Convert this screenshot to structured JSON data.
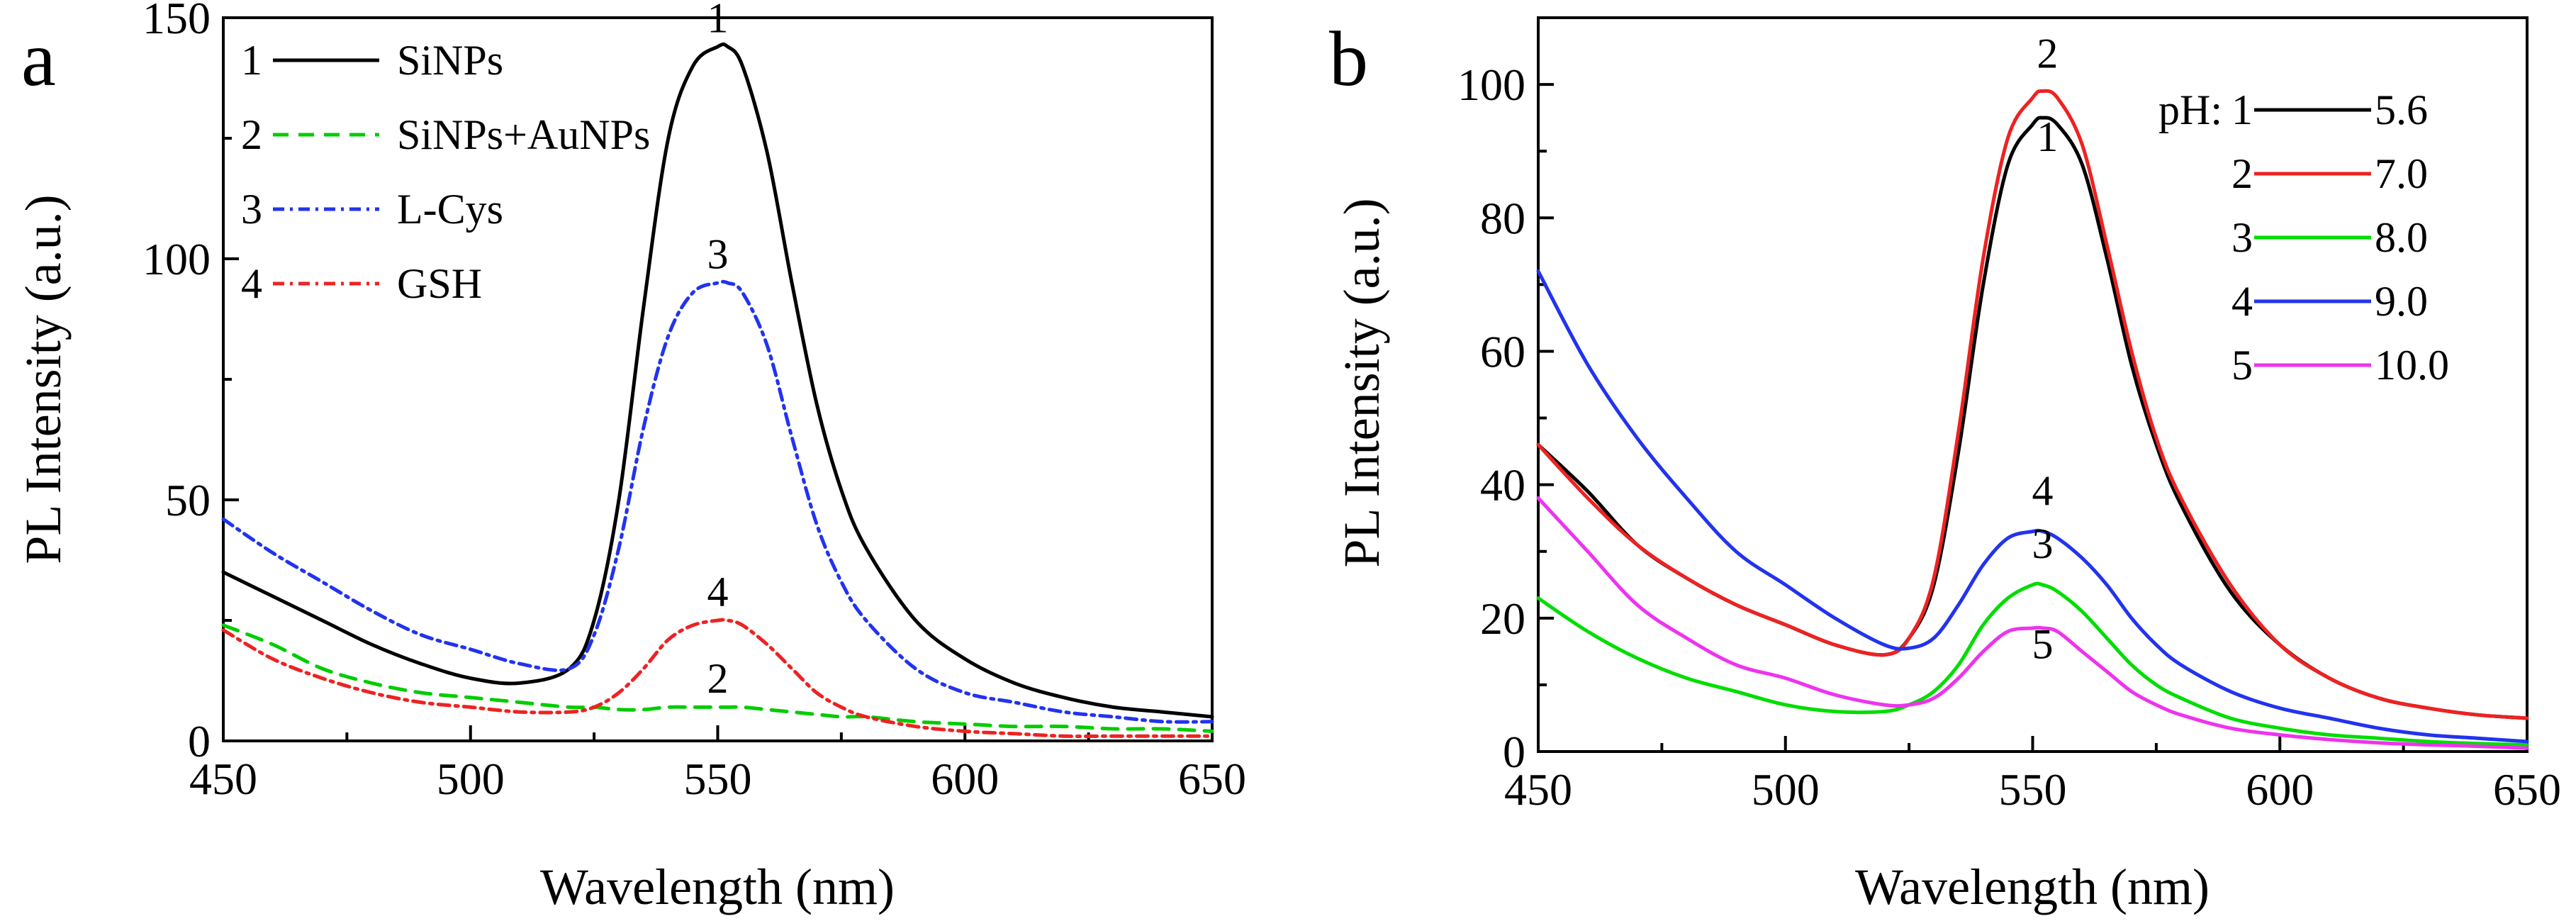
{
  "chart_data": [
    {
      "type": "line",
      "panel_label": "a",
      "xlabel": "Wavelength (nm)",
      "ylabel": "PL Intensity (a.u.)",
      "xlim": [
        450,
        650
      ],
      "ylim": [
        0,
        150
      ],
      "xticks": [
        450,
        500,
        550,
        600,
        650
      ],
      "yticks": [
        0,
        50,
        100,
        150
      ],
      "x": [
        450,
        460,
        470,
        480,
        490,
        500,
        510,
        520,
        525,
        530,
        535,
        540,
        545,
        550,
        552,
        555,
        560,
        565,
        570,
        575,
        580,
        590,
        600,
        610,
        620,
        630,
        640,
        650
      ],
      "series": [
        {
          "id": "1",
          "name": "SiNPs",
          "color": "#000000",
          "dash": "none",
          "values": [
            35,
            30,
            25,
            20,
            16,
            13,
            12,
            15,
            25,
            50,
            90,
            125,
            140,
            144,
            144,
            140,
            122,
            95,
            70,
            52,
            40,
            25,
            17,
            12,
            9,
            7,
            6,
            5
          ]
        },
        {
          "id": "2",
          "name": "SiNPs+AuNPs",
          "color": "#00cc00",
          "dash": "22,14",
          "values": [
            24,
            20,
            15,
            12,
            10,
            9,
            8,
            7,
            7,
            6.5,
            6.5,
            7,
            7,
            7,
            7,
            7,
            6.5,
            6,
            5.5,
            5,
            5,
            4,
            3.5,
            3,
            3,
            2.5,
            2.5,
            2
          ]
        },
        {
          "id": "3",
          "name": "L-Cys",
          "color": "#2233ee",
          "dash": "16,8,4,8",
          "values": [
            46,
            39,
            33,
            27,
            22,
            19,
            16,
            15,
            22,
            40,
            65,
            84,
            93,
            95,
            95,
            93,
            82,
            63,
            45,
            33,
            25,
            15,
            10,
            8,
            6,
            5,
            4,
            4
          ]
        },
        {
          "id": "4",
          "name": "GSH",
          "color": "#ee2222",
          "dash": "16,8,4,8",
          "values": [
            23,
            17,
            13,
            10,
            8,
            7,
            6,
            6,
            7,
            10,
            15,
            21,
            24,
            25,
            25,
            24,
            20,
            15,
            10,
            7,
            5,
            3,
            2,
            1.5,
            1,
            1,
            1,
            1
          ]
        }
      ],
      "legend": [
        "1",
        "2",
        "3",
        "4"
      ],
      "peak_labels": [
        {
          "text": "1",
          "x": 550,
          "y": 147
        },
        {
          "text": "3",
          "x": 550,
          "y": 98
        },
        {
          "text": "4",
          "x": 550,
          "y": 28
        },
        {
          "text": "2",
          "x": 550,
          "y": 10
        }
      ]
    },
    {
      "type": "line",
      "panel_label": "b",
      "xlabel": "Wavelength (nm)",
      "ylabel": "PL Intensity (a.u.)",
      "xlim": [
        450,
        650
      ],
      "ylim": [
        0,
        110
      ],
      "xticks": [
        450,
        500,
        550,
        600,
        650
      ],
      "yticks": [
        0,
        20,
        40,
        60,
        80,
        100
      ],
      "x": [
        450,
        460,
        470,
        480,
        490,
        500,
        510,
        520,
        525,
        530,
        535,
        540,
        545,
        550,
        552,
        555,
        560,
        565,
        570,
        575,
        580,
        590,
        600,
        610,
        620,
        630,
        640,
        650
      ],
      "legend_prefix": "pH:",
      "series": [
        {
          "id": "1",
          "name": "5.6",
          "color": "#000000",
          "values": [
            46,
            39,
            31,
            26,
            22,
            19,
            16,
            14.5,
            17,
            25,
            45,
            70,
            88,
            94,
            95,
            94,
            88,
            74,
            58,
            46,
            37,
            24,
            16,
            11,
            8,
            6.5,
            5.5,
            5
          ]
        },
        {
          "id": "2",
          "name": "7.0",
          "color": "#ee2222",
          "values": [
            46,
            38,
            31,
            26,
            22,
            19,
            16,
            14.5,
            17,
            26,
            48,
            74,
            92,
            98,
            99,
            98,
            91,
            76,
            60,
            47,
            38,
            25,
            16,
            11,
            8,
            6.5,
            5.5,
            5
          ]
        },
        {
          "id": "3",
          "name": "8.0",
          "color": "#00dd00",
          "values": [
            23,
            18,
            14,
            11,
            9,
            7,
            6,
            6,
            7,
            9,
            13,
            19,
            23,
            25,
            25,
            24,
            21,
            17,
            13,
            10,
            8,
            5,
            3.5,
            2.5,
            2,
            1.5,
            1.2,
            1
          ]
        },
        {
          "id": "4",
          "name": "9.0",
          "color": "#2233ee",
          "values": [
            72,
            58,
            47,
            38,
            30,
            25,
            20,
            16,
            15.5,
            17,
            22,
            28,
            32,
            33,
            33,
            32,
            29,
            25,
            20,
            16,
            13,
            9,
            6.5,
            5,
            3.5,
            2.5,
            2,
            1.5
          ]
        },
        {
          "id": "5",
          "name": "10.0",
          "color": "#ee33ee",
          "values": [
            38,
            30,
            22,
            17,
            13,
            11,
            8.5,
            7,
            7,
            8,
            11,
            15,
            18,
            18.5,
            18.5,
            18,
            15,
            12,
            9,
            7,
            5.5,
            3.5,
            2.5,
            1.8,
            1.3,
            1,
            0.8,
            0.5
          ]
        }
      ],
      "legend": [
        "1",
        "2",
        "3",
        "4",
        "5"
      ],
      "peak_labels": [
        {
          "text": "2",
          "x": 553,
          "y": 102.5
        },
        {
          "text": "1",
          "x": 553,
          "y": 90
        },
        {
          "text": "4",
          "x": 552,
          "y": 37
        },
        {
          "text": "3",
          "x": 552,
          "y": 29
        },
        {
          "text": "5",
          "x": 552,
          "y": 14
        }
      ]
    }
  ]
}
